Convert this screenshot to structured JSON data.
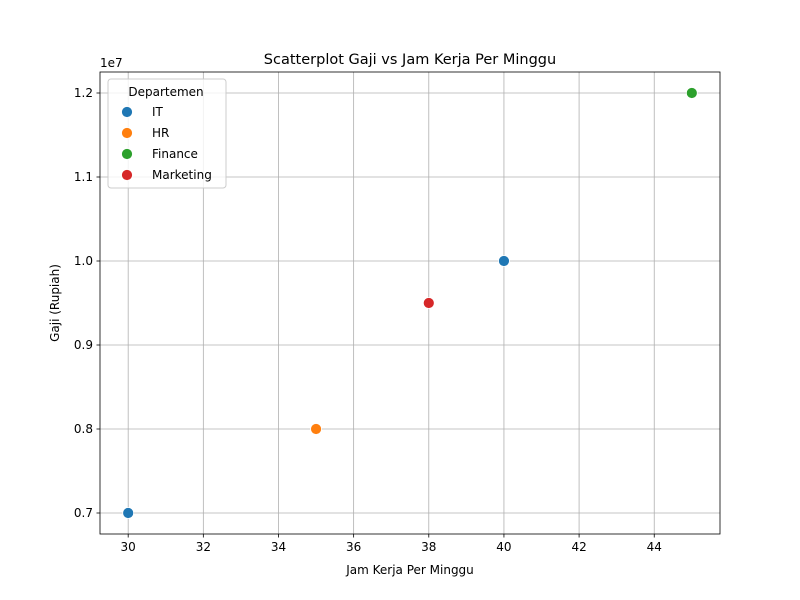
{
  "chart_data": {
    "type": "scatter",
    "title": "Scatterplot Gaji vs Jam Kerja Per Minggu",
    "xlabel": "Jam Kerja Per Minggu",
    "ylabel": "Gaji (Rupiah)",
    "y_offset_label": "1e7",
    "xlim": [
      29.25,
      45.75
    ],
    "ylim": [
      6750000,
      12250000
    ],
    "x_ticks": [
      30,
      32,
      34,
      36,
      38,
      40,
      42,
      44
    ],
    "x_tick_labels": [
      "30",
      "32",
      "34",
      "36",
      "38",
      "40",
      "42",
      "44"
    ],
    "y_ticks": [
      7000000,
      8000000,
      9000000,
      10000000,
      11000000,
      12000000
    ],
    "y_tick_labels": [
      "0.7",
      "0.8",
      "0.9",
      "1.0",
      "1.1",
      "1.2"
    ],
    "grid": true,
    "legend": {
      "title": "Departemen",
      "placement": "top-left"
    },
    "series": [
      {
        "name": "IT",
        "color": "#1f77b4",
        "points": [
          {
            "x": 30,
            "y": 7000000
          },
          {
            "x": 40,
            "y": 10000000
          }
        ]
      },
      {
        "name": "HR",
        "color": "#ff7f0e",
        "points": [
          {
            "x": 35,
            "y": 8000000
          }
        ]
      },
      {
        "name": "Finance",
        "color": "#2ca02c",
        "points": [
          {
            "x": 45,
            "y": 12000000
          }
        ]
      },
      {
        "name": "Marketing",
        "color": "#d62728",
        "points": [
          {
            "x": 38,
            "y": 9500000
          }
        ]
      }
    ]
  }
}
